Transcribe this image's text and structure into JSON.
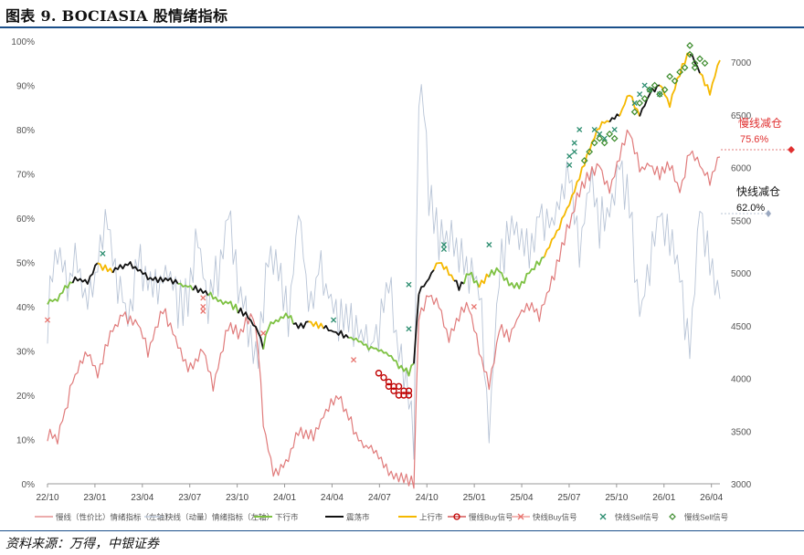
{
  "title": "图表 9. BOCIASIA 股情绪指标",
  "source": "资料来源：万得，中银证券",
  "chart_data": {
    "type": "line",
    "x_ticks": [
      "22/10",
      "23/01",
      "23/04",
      "23/07",
      "23/10",
      "24/01",
      "24/04",
      "24/07",
      "24/10",
      "25/01",
      "25/04",
      "25/07",
      "25/10",
      "26/01",
      "26/04"
    ],
    "y_left": {
      "ticks": [
        "0%",
        "10%",
        "20%",
        "30%",
        "40%",
        "50%",
        "60%",
        "70%",
        "80%",
        "90%",
        "100%"
      ],
      "lim": [
        0,
        100
      ]
    },
    "y_right": {
      "ticks": [
        "3000",
        "3500",
        "4000",
        "4500",
        "5000",
        "5500",
        "6000",
        "6500",
        "7000"
      ],
      "lim": [
        3000,
        7200
      ]
    },
    "colors": {
      "slow_line": "#e07b7b",
      "fast_line": "#b8c4d6",
      "down_market": "#7dc142",
      "range_market": "#111111",
      "up_market": "#f5b800",
      "slow_buy": "#c00000",
      "fast_buy": "#e8736d",
      "fast_sell": "#2a8c6e",
      "slow_sell": "#3a8a2a"
    },
    "annotations": [
      {
        "label": "慢线减仓",
        "value": "75.6%",
        "color": "#e03030"
      },
      {
        "label": "快线减仓",
        "value": "62.0%",
        "color": "#111111"
      }
    ],
    "legend": [
      {
        "key": "slow",
        "label": "慢线（性价比）情绪指标（左轴）"
      },
      {
        "key": "fast",
        "label": "快线（动量）情绪指标（左轴）"
      },
      {
        "key": "down",
        "label": "下行市"
      },
      {
        "key": "range",
        "label": "震荡市"
      },
      {
        "key": "up",
        "label": "上行市"
      },
      {
        "key": "slowbuy",
        "label": "慢线Buy信号"
      },
      {
        "key": "fastbuy",
        "label": "快线Buy信号"
      },
      {
        "key": "fastsell",
        "label": "快线Sell信号"
      },
      {
        "key": "slowsell",
        "label": "慢线Sell信号"
      }
    ],
    "series": [
      {
        "name": "慢线（性价比）情绪指标（左轴）",
        "axis": "left",
        "anchors": [
          [
            0,
            11
          ],
          [
            2,
            10
          ],
          [
            5,
            23
          ],
          [
            8,
            30
          ],
          [
            10,
            25
          ],
          [
            13,
            35
          ],
          [
            15,
            38
          ],
          [
            18,
            36
          ],
          [
            20,
            30
          ],
          [
            23,
            40
          ],
          [
            26,
            31
          ],
          [
            28,
            26
          ],
          [
            31,
            30
          ],
          [
            33,
            22
          ],
          [
            36,
            36
          ],
          [
            38,
            34
          ],
          [
            41,
            38
          ],
          [
            42,
            30
          ],
          [
            43,
            14
          ],
          [
            45,
            2
          ],
          [
            48,
            6
          ],
          [
            50,
            12
          ],
          [
            53,
            11
          ],
          [
            56,
            17
          ],
          [
            58,
            20
          ],
          [
            60,
            15
          ],
          [
            62,
            10
          ],
          [
            64,
            8
          ],
          [
            66,
            6
          ],
          [
            68,
            3
          ],
          [
            71,
            1
          ],
          [
            72,
            0.5
          ],
          [
            73,
            0.5
          ],
          [
            74,
            38
          ],
          [
            76,
            43
          ],
          [
            78,
            40
          ],
          [
            80,
            33
          ],
          [
            82,
            38
          ],
          [
            84,
            40
          ],
          [
            86,
            30
          ],
          [
            88,
            22
          ],
          [
            90,
            35
          ],
          [
            92,
            33
          ],
          [
            94,
            38
          ],
          [
            96,
            40
          ],
          [
            98,
            38
          ],
          [
            100,
            44
          ],
          [
            102,
            51
          ],
          [
            104,
            59
          ],
          [
            106,
            66
          ],
          [
            108,
            70
          ],
          [
            110,
            72
          ],
          [
            112,
            66
          ],
          [
            114,
            74
          ],
          [
            116,
            80
          ],
          [
            118,
            71
          ],
          [
            120,
            72
          ],
          [
            122,
            70
          ],
          [
            124,
            72
          ],
          [
            126,
            66
          ],
          [
            128,
            75
          ],
          [
            130,
            72
          ],
          [
            132,
            68
          ],
          [
            134,
            74
          ]
        ]
      },
      {
        "name": "快线（动量）情绪指标（左轴）",
        "axis": "left",
        "anchors": [
          [
            0,
            37
          ],
          [
            2,
            55
          ],
          [
            4,
            45
          ],
          [
            6,
            50
          ],
          [
            8,
            40
          ],
          [
            10,
            48
          ],
          [
            12,
            60
          ],
          [
            14,
            45
          ],
          [
            16,
            38
          ],
          [
            18,
            52
          ],
          [
            20,
            46
          ],
          [
            22,
            43
          ],
          [
            24,
            50
          ],
          [
            26,
            40
          ],
          [
            28,
            42
          ],
          [
            30,
            55
          ],
          [
            32,
            40
          ],
          [
            34,
            48
          ],
          [
            36,
            60
          ],
          [
            38,
            44
          ],
          [
            40,
            36
          ],
          [
            42,
            30
          ],
          [
            44,
            50
          ],
          [
            46,
            46
          ],
          [
            48,
            38
          ],
          [
            50,
            62
          ],
          [
            52,
            40
          ],
          [
            54,
            48
          ],
          [
            56,
            44
          ],
          [
            58,
            38
          ],
          [
            60,
            36
          ],
          [
            62,
            34
          ],
          [
            64,
            30
          ],
          [
            66,
            36
          ],
          [
            68,
            46
          ],
          [
            70,
            28
          ],
          [
            72,
            22
          ],
          [
            73,
            8
          ],
          [
            74,
            90
          ],
          [
            75,
            86
          ],
          [
            76,
            65
          ],
          [
            78,
            54
          ],
          [
            80,
            58
          ],
          [
            82,
            52
          ],
          [
            84,
            48
          ],
          [
            86,
            44
          ],
          [
            88,
            13
          ],
          [
            90,
            46
          ],
          [
            92,
            60
          ],
          [
            94,
            54
          ],
          [
            96,
            52
          ],
          [
            98,
            62
          ],
          [
            100,
            58
          ],
          [
            102,
            64
          ],
          [
            104,
            68
          ],
          [
            106,
            54
          ],
          [
            108,
            68
          ],
          [
            110,
            58
          ],
          [
            112,
            62
          ],
          [
            114,
            72
          ],
          [
            116,
            62
          ],
          [
            118,
            38
          ],
          [
            120,
            48
          ],
          [
            122,
            62
          ],
          [
            124,
            56
          ],
          [
            126,
            46
          ],
          [
            128,
            30
          ],
          [
            130,
            62
          ],
          [
            132,
            50
          ],
          [
            134,
            42
          ]
        ]
      },
      {
        "name": "BOCIASIA",
        "axis": "right",
        "anchors": [
          [
            0,
            4720
          ],
          [
            2,
            4750
          ],
          [
            4,
            4880
          ],
          [
            6,
            4950
          ],
          [
            8,
            4920
          ],
          [
            10,
            5100
          ],
          [
            12,
            5020
          ],
          [
            14,
            5050
          ],
          [
            16,
            5080
          ],
          [
            18,
            5040
          ],
          [
            20,
            4950
          ],
          [
            22,
            4920
          ],
          [
            24,
            4950
          ],
          [
            26,
            4900
          ],
          [
            28,
            4870
          ],
          [
            30,
            4850
          ],
          [
            32,
            4800
          ],
          [
            34,
            4740
          ],
          [
            36,
            4720
          ],
          [
            38,
            4650
          ],
          [
            40,
            4590
          ],
          [
            42,
            4440
          ],
          [
            43,
            4300
          ],
          [
            44,
            4480
          ],
          [
            46,
            4560
          ],
          [
            48,
            4590
          ],
          [
            50,
            4480
          ],
          [
            52,
            4540
          ],
          [
            54,
            4500
          ],
          [
            56,
            4460
          ],
          [
            58,
            4430
          ],
          [
            60,
            4400
          ],
          [
            62,
            4350
          ],
          [
            64,
            4300
          ],
          [
            66,
            4280
          ],
          [
            68,
            4230
          ],
          [
            70,
            4110
          ],
          [
            72,
            4050
          ],
          [
            73,
            4150
          ],
          [
            74,
            4800
          ],
          [
            76,
            4950
          ],
          [
            78,
            5110
          ],
          [
            80,
            5000
          ],
          [
            82,
            4860
          ],
          [
            84,
            5000
          ],
          [
            86,
            4880
          ],
          [
            88,
            4980
          ],
          [
            90,
            5030
          ],
          [
            92,
            4900
          ],
          [
            94,
            4870
          ],
          [
            96,
            5000
          ],
          [
            98,
            5100
          ],
          [
            100,
            5250
          ],
          [
            102,
            5450
          ],
          [
            104,
            5650
          ],
          [
            106,
            5900
          ],
          [
            108,
            6180
          ],
          [
            110,
            6400
          ],
          [
            112,
            6450
          ],
          [
            114,
            6500
          ],
          [
            116,
            6700
          ],
          [
            118,
            6500
          ],
          [
            120,
            6700
          ],
          [
            122,
            6800
          ],
          [
            124,
            6600
          ],
          [
            126,
            6900
          ],
          [
            128,
            7100
          ],
          [
            130,
            6900
          ],
          [
            132,
            6700
          ],
          [
            134,
            7050
          ]
        ]
      }
    ]
  }
}
